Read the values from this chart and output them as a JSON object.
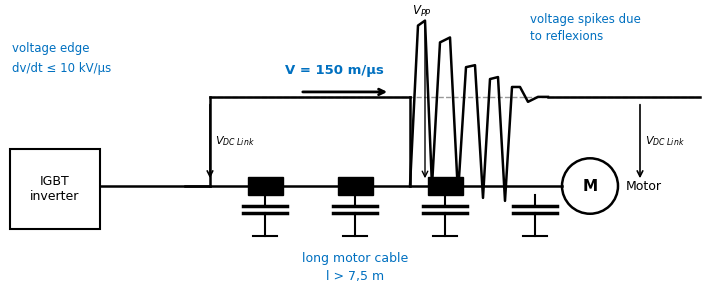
{
  "bg_color": "#ffffff",
  "blue_color": "#0070C0",
  "black_color": "#000000",
  "gray_dash_color": "#999999",
  "figsize": [
    7.11,
    2.92
  ],
  "dpi": 100,
  "igbt_text": "IGBT\ninverter",
  "motor_text": "M",
  "motor_label": "Motor",
  "label_voltage_edge_1": "voltage edge",
  "label_voltage_edge_2": "dv/dt ≤ 10 kV/μs",
  "label_v_150": "V = 150 m/μs",
  "label_voltage_spikes_1": "voltage spikes due",
  "label_voltage_spikes_2": "to reflexions",
  "label_long_cable_1": "long motor cable",
  "label_long_cable_2": "l > 7,5 m"
}
